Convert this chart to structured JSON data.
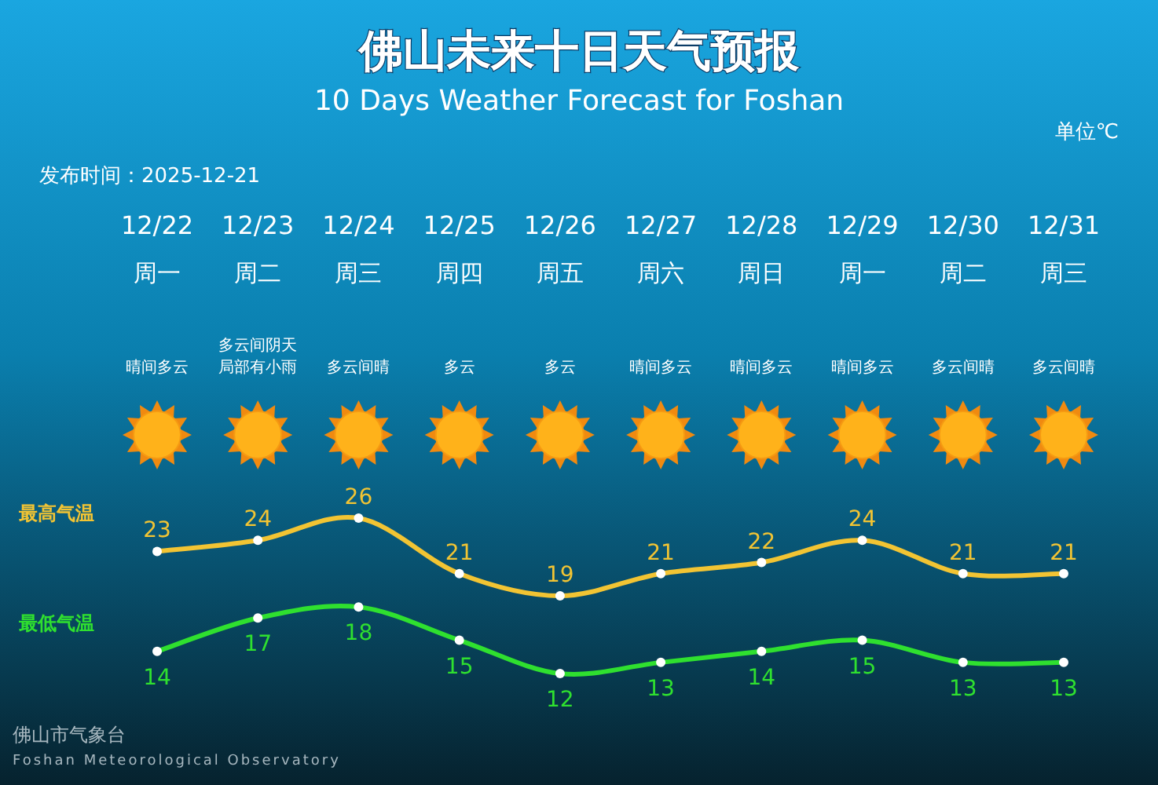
{
  "chart_data": {
    "type": "line",
    "title": "佛山未来十日天气预报",
    "subtitle": "10 Days Weather Forecast for Foshan",
    "categories": [
      "12/22",
      "12/23",
      "12/24",
      "12/25",
      "12/26",
      "12/27",
      "12/28",
      "12/29",
      "12/30",
      "12/31"
    ],
    "series": [
      {
        "name": "最高气温",
        "color": "#f2c433",
        "values": [
          23,
          24,
          26,
          21,
          19,
          21,
          22,
          24,
          21,
          21
        ]
      },
      {
        "name": "最低气温",
        "color": "#2fe02f",
        "values": [
          14,
          17,
          18,
          15,
          12,
          13,
          14,
          15,
          13,
          13
        ]
      }
    ],
    "data_labels": true,
    "marker": "circle",
    "line_style": "solid",
    "legend": false,
    "grid": false,
    "tick_labels": "x",
    "annotations": [
      "单位℃",
      "发布时间：2025-12-21",
      "佛山市气象台",
      "Foshan Meteorological Observatory",
      "周一",
      "周二",
      "周三",
      "周四",
      "周五",
      "周六",
      "周日",
      "周一",
      "周二",
      "周三",
      "晴间多云",
      "多云间阴天局部有小雨",
      "多云间晴",
      "多云",
      "多云",
      "晴间多云",
      "晴间多云",
      "晴间多云",
      "多云间晴",
      "多云间晴"
    ]
  }
}
